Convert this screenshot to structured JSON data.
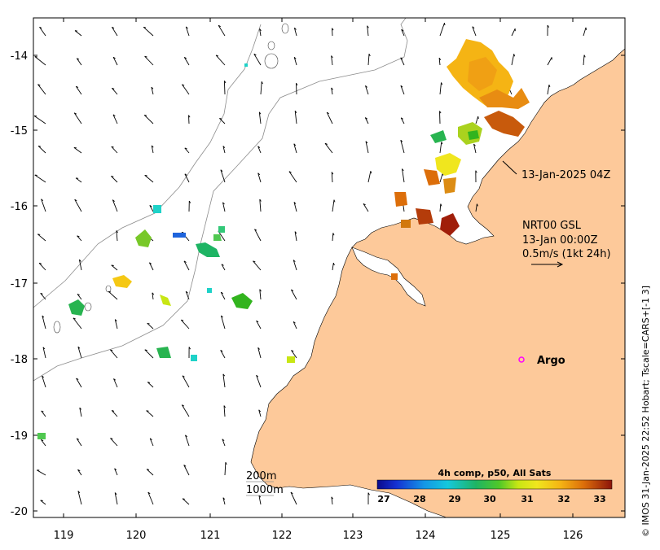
{
  "map": {
    "x_ticks": [
      "119",
      "120",
      "121",
      "122",
      "123",
      "124",
      "125",
      "126"
    ],
    "y_ticks": [
      "-14",
      "-15",
      "-16",
      "-17",
      "-18",
      "-19",
      "-20"
    ],
    "land_color": "#fdc99a",
    "frame_color": "#000000"
  },
  "annotations": {
    "track_label": "13-Jan-2025 04Z",
    "current_title": "NRT00 GSL",
    "current_date": "13-Jan 00:00Z",
    "current_scale": "0.5m/s (1kt 24h)",
    "argo_label": "Argo",
    "argo_color": "#ff00ff"
  },
  "bathymetry": {
    "contour_200": "200m",
    "contour_1000": "1000m"
  },
  "colorbar": {
    "title": "4h comp, p50, All Sats",
    "ticks": [
      "27",
      "28",
      "29",
      "30",
      "31",
      "32",
      "33"
    ]
  },
  "credit": "© IMOS 31-Jan-2025 22:52 Hobart; Tscale=CARS+[-1 3]"
}
